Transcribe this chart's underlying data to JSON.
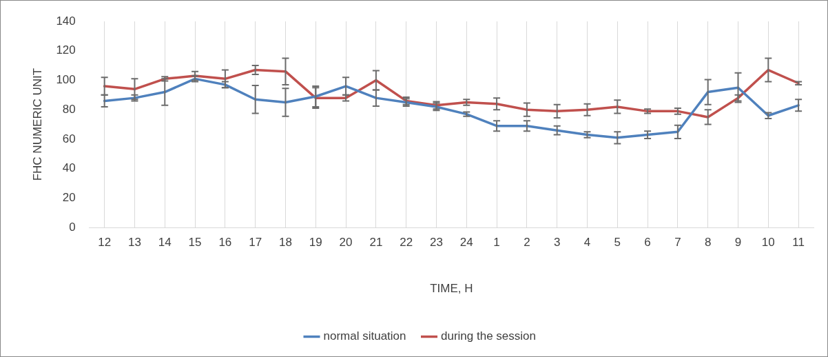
{
  "chart_data": {
    "type": "line",
    "xlabel": "TIME, H",
    "ylabel": "FHC NUMERIC UNIT",
    "categories": [
      "12",
      "13",
      "14",
      "15",
      "16",
      "17",
      "18",
      "19",
      "20",
      "21",
      "22",
      "23",
      "24",
      "1",
      "2",
      "3",
      "4",
      "5",
      "6",
      "7",
      "8",
      "9",
      "10",
      "11"
    ],
    "series": [
      {
        "name": "normal situation",
        "color": "#4f81bd",
        "values": [
          86,
          88,
          92,
          101,
          97,
          87,
          85,
          89,
          96,
          88,
          85,
          82,
          77,
          69,
          69,
          66,
          63,
          61,
          63,
          65,
          92,
          95,
          76,
          83
        ],
        "errors": [
          4,
          2,
          9,
          2,
          2,
          9.5,
          9.5,
          7,
          6,
          5.5,
          2.5,
          2.5,
          1.5,
          3.5,
          3.5,
          3,
          2,
          4,
          2.5,
          4.5,
          8.5,
          10,
          2,
          4
        ]
      },
      {
        "name": "during the session",
        "color": "#c0504d",
        "values": [
          96,
          94,
          101,
          103,
          101,
          107,
          106,
          88,
          88,
          100,
          86,
          83,
          85,
          84,
          80,
          79,
          80,
          82,
          79,
          79,
          75,
          88,
          107,
          98
        ],
        "errors": [
          6,
          7,
          1.5,
          3,
          6,
          3,
          9,
          7,
          2,
          6.5,
          2.5,
          2.5,
          2,
          4,
          4.5,
          4.5,
          4,
          4.5,
          1.5,
          2,
          5,
          2,
          8,
          1
        ]
      }
    ],
    "ylim": [
      0,
      140
    ],
    "yticks": [
      0,
      20,
      40,
      60,
      80,
      100,
      120,
      140
    ],
    "grid": "x",
    "legend": "bottom",
    "line_style": "solid"
  }
}
